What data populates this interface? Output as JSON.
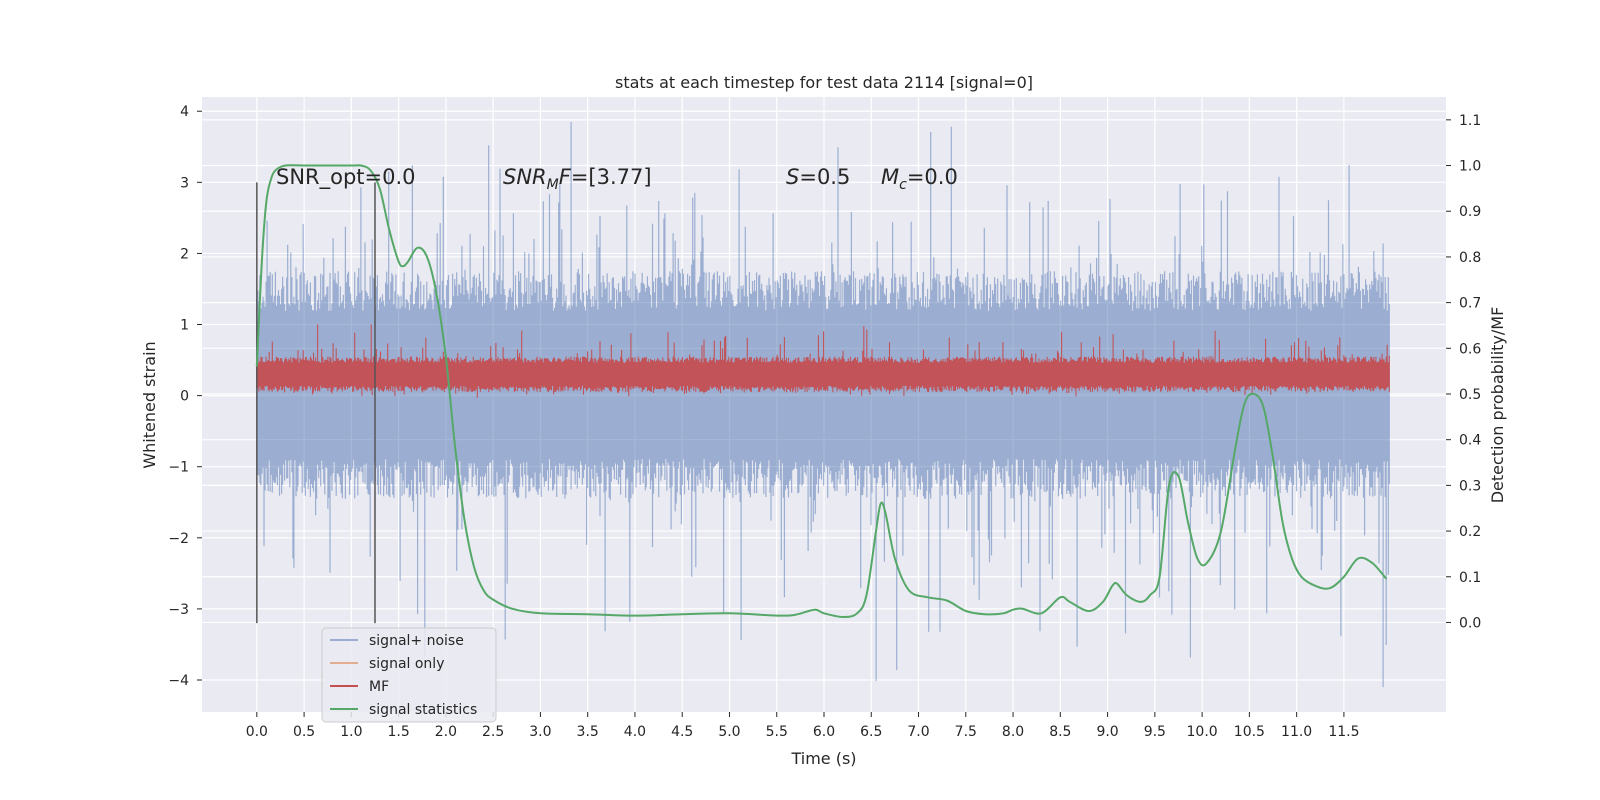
{
  "chart_data": {
    "type": "line",
    "title": "stats at each timestep for test data 2114 [signal=0]",
    "xlabel": "Time (s)",
    "ylabel": "Whitened strain",
    "y2label": "Detection probability/MF",
    "xlim": [
      -0.58,
      12.58
    ],
    "ylim": [
      -4.45,
      4.2
    ],
    "y2lim": [
      -0.196,
      1.15
    ],
    "grid": true,
    "x_ticks": [
      "0.0",
      "0.5",
      "1.0",
      "1.5",
      "2.0",
      "2.5",
      "3.0",
      "3.5",
      "4.0",
      "4.5",
      "5.0",
      "5.5",
      "6.0",
      "6.5",
      "7.0",
      "7.5",
      "8.0",
      "8.5",
      "9.0",
      "9.5",
      "10.0",
      "10.5",
      "11.0",
      "11.5"
    ],
    "y_ticks": [
      "4",
      "3",
      "2",
      "1",
      "0",
      "−1",
      "−2",
      "−3",
      "−4"
    ],
    "y2_ticks": [
      "1.1",
      "1.0",
      "0.9",
      "0.8",
      "0.7",
      "0.6",
      "0.5",
      "0.4",
      "0.3",
      "0.2",
      "0.1",
      "0.0"
    ],
    "annotations": {
      "snr_opt": "SNR_opt=0.0",
      "snr_mf_sym": "SNR",
      "snr_mf_sub": "M",
      "snr_mf_rest": "F=[3.77]",
      "s_sym": "S",
      "s_rest": "=0.5",
      "mc_sym": "M",
      "mc_sub": "c",
      "mc_rest": "=0.0"
    },
    "vlines": [
      0.0,
      1.25
    ],
    "vline_range": [
      -3.2,
      3.0
    ],
    "series": [
      {
        "name": "signal+ noise",
        "color": "#4c72b0",
        "style": "noise",
        "x_range": [
          0.0,
          11.98
        ],
        "band_low_y": -1.45,
        "band_high_y": 1.75,
        "extreme_min_y": -4.1,
        "extreme_max_y": 3.85
      },
      {
        "name": "signal only",
        "color": "#dd8452",
        "values": []
      },
      {
        "name": "MF",
        "color": "#c44e52",
        "style": "noise",
        "x_range": [
          0.0,
          11.98
        ],
        "band_low_y": 0.05,
        "band_high_y": 0.55,
        "extreme_min_y": -0.05,
        "extreme_max_y": 1.0
      },
      {
        "name": "signal statistics",
        "color": "#55a868",
        "axis": "right",
        "x": [
          0.0,
          0.05,
          0.1,
          0.15,
          0.2,
          0.3,
          0.5,
          1.0,
          1.1,
          1.2,
          1.3,
          1.4,
          1.5,
          1.55,
          1.6,
          1.7,
          1.8,
          1.9,
          2.0,
          2.1,
          2.2,
          2.3,
          2.4,
          2.5,
          2.7,
          3.0,
          3.5,
          4.0,
          4.5,
          5.0,
          5.5,
          5.7,
          5.9,
          6.0,
          6.2,
          6.35,
          6.45,
          6.55,
          6.6,
          6.65,
          6.75,
          6.9,
          7.1,
          7.3,
          7.5,
          7.7,
          7.9,
          8.0,
          8.1,
          8.3,
          8.5,
          8.6,
          8.8,
          8.95,
          9.05,
          9.1,
          9.2,
          9.35,
          9.45,
          9.55,
          9.65,
          9.75,
          9.85,
          9.95,
          10.05,
          10.2,
          10.35,
          10.45,
          10.55,
          10.65,
          10.75,
          10.85,
          10.95,
          11.05,
          11.2,
          11.35,
          11.5,
          11.65,
          11.8,
          11.95
        ],
        "values": [
          0.56,
          0.78,
          0.92,
          0.97,
          0.99,
          1.0,
          1.0,
          1.0,
          1.0,
          0.99,
          0.95,
          0.86,
          0.79,
          0.78,
          0.79,
          0.82,
          0.8,
          0.72,
          0.58,
          0.38,
          0.22,
          0.12,
          0.07,
          0.05,
          0.03,
          0.02,
          0.018,
          0.015,
          0.018,
          0.02,
          0.015,
          0.017,
          0.028,
          0.02,
          0.012,
          0.02,
          0.06,
          0.2,
          0.26,
          0.24,
          0.14,
          0.07,
          0.055,
          0.048,
          0.025,
          0.018,
          0.02,
          0.028,
          0.03,
          0.02,
          0.055,
          0.045,
          0.025,
          0.045,
          0.08,
          0.085,
          0.06,
          0.045,
          0.06,
          0.1,
          0.3,
          0.32,
          0.22,
          0.14,
          0.13,
          0.2,
          0.38,
          0.48,
          0.5,
          0.47,
          0.36,
          0.22,
          0.14,
          0.1,
          0.08,
          0.075,
          0.1,
          0.14,
          0.13,
          0.095
        ]
      }
    ],
    "legend": {
      "position": "lower-left",
      "entries": [
        "signal+ noise",
        "signal only",
        "MF",
        "signal statistics"
      ]
    }
  }
}
